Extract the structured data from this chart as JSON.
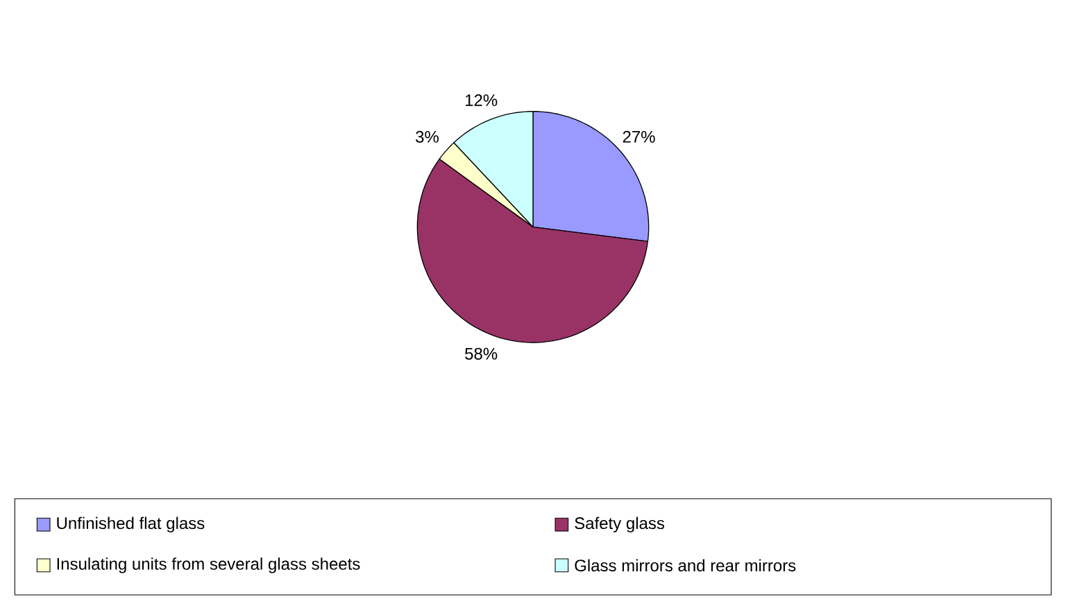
{
  "chart_data": {
    "type": "pie",
    "categories": [
      "Unfinished flat glass",
      "Safety glass",
      "Insulating units from several glass sheets",
      "Glass mirrors and rear mirrors"
    ],
    "values": [
      27,
      58,
      3,
      12
    ],
    "value_labels": [
      "27%",
      "58%",
      "3%",
      "12%"
    ],
    "colors": [
      "#9999ff",
      "#993366",
      "#ffffcc",
      "#ccffff"
    ],
    "legend": "bottom"
  }
}
